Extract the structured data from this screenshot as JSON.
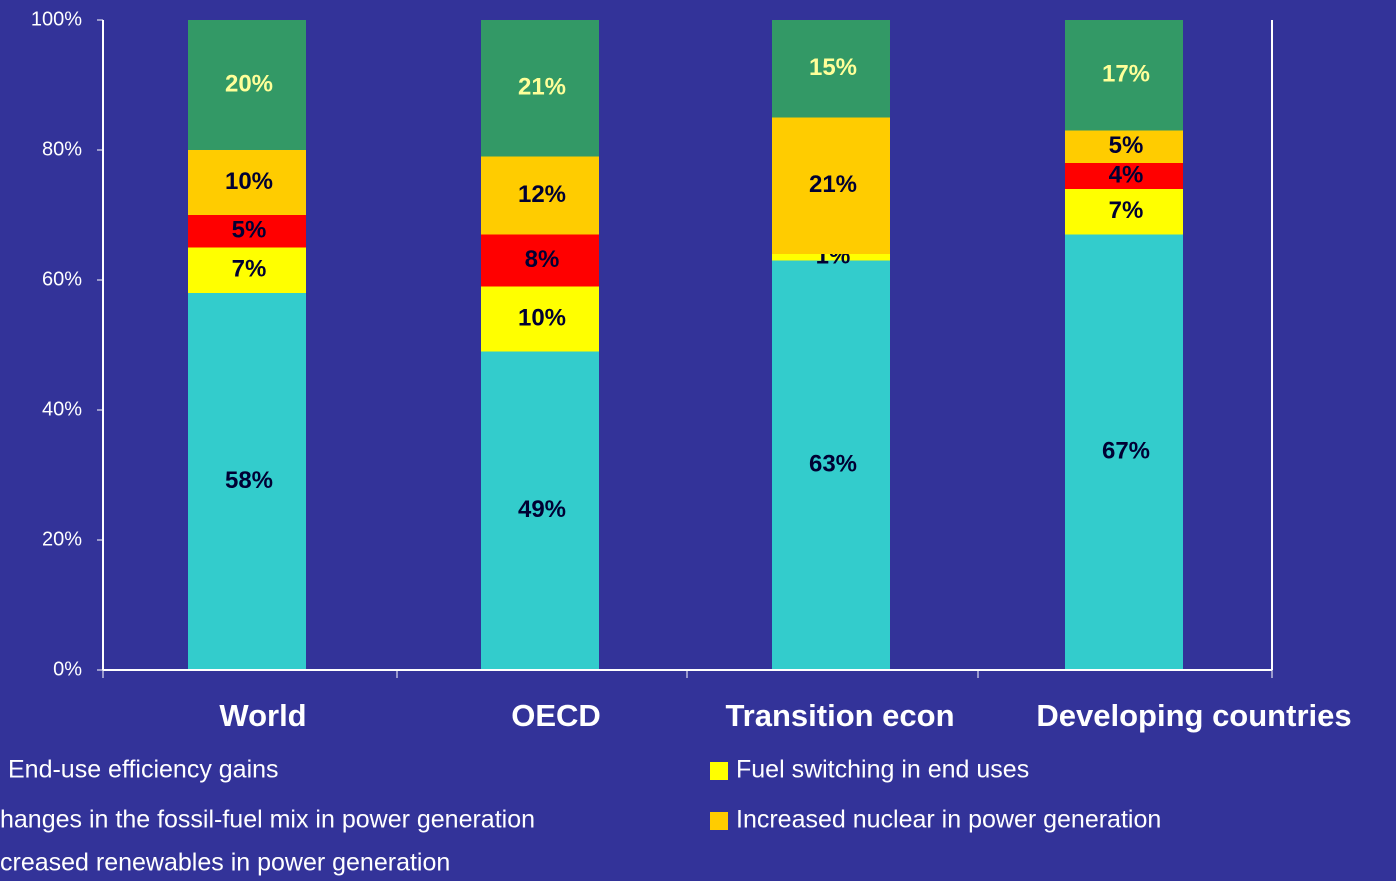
{
  "chart_data": {
    "type": "stacked_bar",
    "categories": [
      "World",
      "OECD",
      "Transition econ",
      "Developing countries"
    ],
    "series": [
      {
        "name": "End-use efficiency gains",
        "color": "#33cccc",
        "values": [
          58,
          49,
          63,
          67
        ],
        "value_labels": [
          "58%",
          "49%",
          "63%",
          "67%"
        ]
      },
      {
        "name": "Fuel switching in end uses",
        "color": "#ffff00",
        "values": [
          7,
          10,
          1,
          7
        ],
        "value_labels": [
          "7%",
          "10%",
          "1%",
          "7%"
        ]
      },
      {
        "name": "hanges in the fossil-fuel mix in power generation",
        "color": "#ff0000",
        "values": [
          5,
          8,
          0,
          4
        ],
        "value_labels": [
          "5%",
          "8%",
          null,
          "4%"
        ]
      },
      {
        "name": "Increased nuclear in power generation",
        "color": "#ffcc00",
        "values": [
          10,
          12,
          21,
          5
        ],
        "value_labels": [
          "10%",
          "12%",
          "21%",
          "5%"
        ]
      },
      {
        "name": "creased renewables in power generation",
        "color": "#339966",
        "values": [
          20,
          21,
          15,
          17
        ],
        "value_labels": [
          "20%",
          "21%",
          "15%",
          "17%"
        ]
      }
    ],
    "ylim": [
      0,
      100
    ],
    "yticks": [
      {
        "value": 0,
        "label": "0%"
      },
      {
        "value": 20,
        "label": "20%"
      },
      {
        "value": 40,
        "label": "40%"
      },
      {
        "value": 60,
        "label": "60%"
      },
      {
        "value": 80,
        "label": "80%"
      },
      {
        "value": 100,
        "label": "100%"
      }
    ]
  }
}
